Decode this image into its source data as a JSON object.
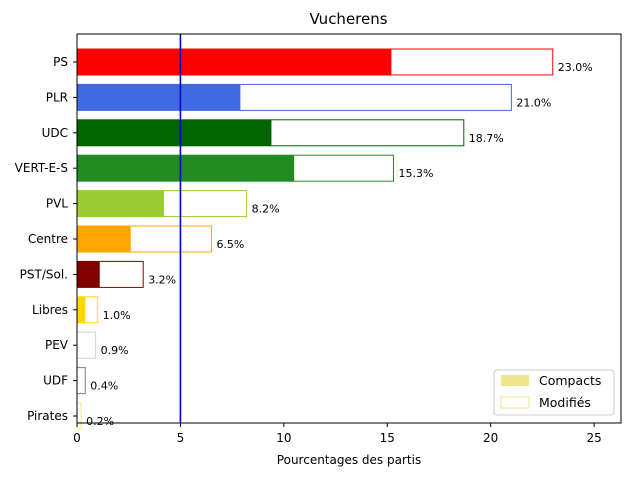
{
  "chart_data": {
    "type": "bar",
    "orientation": "horizontal",
    "title": "Vucherens",
    "xlabel": "Pourcentages des partis",
    "ylabel": "",
    "xlim": [
      0,
      26.3
    ],
    "xticks": [
      0,
      5,
      10,
      15,
      20,
      25
    ],
    "reference_line": {
      "x": 5,
      "color": "#0000cc"
    },
    "categories": [
      "PS",
      "PLR",
      "UDC",
      "VERT-E-S",
      "PVL",
      "Centre",
      "PST/Sol.",
      "Libres",
      "PEV",
      "UDF",
      "Pirates"
    ],
    "series": [
      {
        "name": "Compacts",
        "style": "filled",
        "values": [
          15.2,
          7.9,
          9.4,
          10.5,
          4.2,
          2.6,
          1.1,
          0.4,
          0.0,
          0.0,
          0.0
        ]
      },
      {
        "name": "Modifiés",
        "style": "outline",
        "values": [
          23.0,
          21.0,
          18.7,
          15.3,
          8.2,
          6.5,
          3.2,
          1.0,
          0.9,
          0.4,
          0.2
        ]
      }
    ],
    "data_labels": [
      "23.0%",
      "21.0%",
      "18.7%",
      "15.3%",
      "8.2%",
      "6.5%",
      "3.2%",
      "1.0%",
      "0.9%",
      "0.4%",
      "0.2%"
    ],
    "colors": [
      "#ff0000",
      "#4169e1",
      "#006400",
      "#228b22",
      "#9acd32",
      "#ffa500",
      "#800000",
      "#ffd700",
      "#d3d3d3",
      "#808080",
      "#f0e68c"
    ],
    "legend": {
      "placement": "lower-right",
      "swatch_filled": "#f0e68c",
      "swatch_outline": "#f0e68c"
    },
    "grid": false
  }
}
